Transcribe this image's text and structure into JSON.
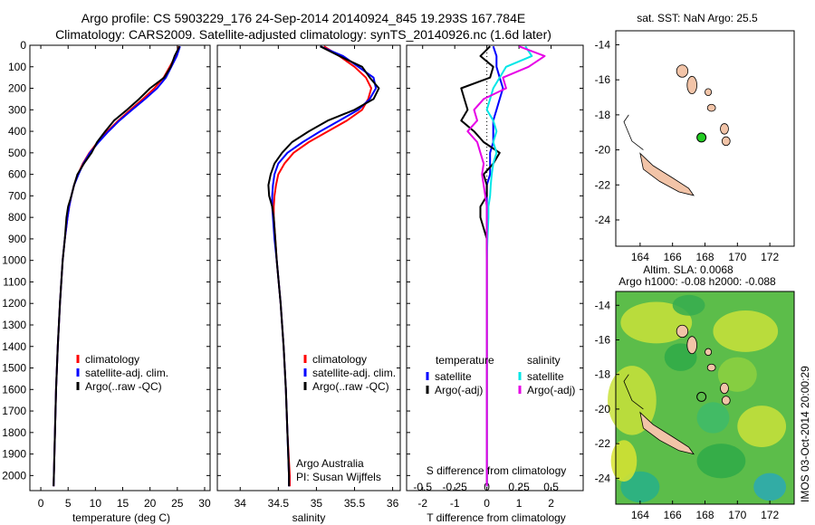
{
  "title": {
    "line1": "Argo profile: CS 5903229_176 24-Sep-2014 20140924_845 19.293S 167.784E",
    "line2": "Climatology: CARS2009. Satellite-adjusted climatology: synTS_20140926.nc (1.6d later)"
  },
  "side_label": "IMOS 03-Oct-2014 20:00:29",
  "colors": {
    "climatology": "#ff0000",
    "satellite": "#0000ff",
    "argo": "#000000",
    "sal_satellite": "#00e6e6",
    "sal_argo": "#e600e6",
    "land": "#f2c4a8",
    "argo_marker": "#22cc22"
  },
  "chart_data": [
    {
      "type": "line",
      "panel": "temperature",
      "xlabel": "temperature (deg C)",
      "ylabel": "",
      "xlim": [
        -2,
        31
      ],
      "ylim": [
        2070,
        0
      ],
      "xticks": [
        0,
        5,
        10,
        15,
        20,
        25,
        30
      ],
      "yticks": [
        0,
        100,
        200,
        300,
        400,
        500,
        600,
        700,
        800,
        900,
        1000,
        1100,
        1200,
        1300,
        1400,
        1500,
        1600,
        1700,
        1800,
        1900,
        2000
      ],
      "depth": [
        5,
        50,
        100,
        150,
        200,
        250,
        300,
        350,
        400,
        450,
        500,
        550,
        600,
        650,
        700,
        750,
        800,
        900,
        1000,
        1200,
        1400,
        1600,
        1800,
        2000,
        2050
      ],
      "series": [
        {
          "name": "climatology",
          "color": "#ff0000",
          "values": [
            25.3,
            24.7,
            23.6,
            22.5,
            20.8,
            18.7,
            16.4,
            14.2,
            12.2,
            10.4,
            8.9,
            7.7,
            6.8,
            6.1,
            5.6,
            5.2,
            4.9,
            4.4,
            4.0,
            3.5,
            3.1,
            2.8,
            2.6,
            2.4,
            2.35
          ]
        },
        {
          "name": "satellite-adj. clim.",
          "color": "#0000ff",
          "values": [
            25.5,
            24.9,
            23.9,
            22.9,
            21.3,
            19.1,
            16.7,
            14.4,
            12.4,
            10.6,
            9.0,
            7.8,
            6.9,
            6.1,
            5.6,
            5.2,
            4.9,
            4.4,
            4.0,
            3.5,
            3.1,
            2.8,
            2.6,
            2.4,
            2.35
          ]
        },
        {
          "name": "Argo(..raw -QC)",
          "color": "#000000",
          "values": [
            25.4,
            24.5,
            23.8,
            22.6,
            20.0,
            18.0,
            15.8,
            13.4,
            11.8,
            10.3,
            9.3,
            7.9,
            6.7,
            6.1,
            5.6,
            5.0,
            4.7,
            4.4,
            4.0,
            3.5,
            3.1,
            2.8,
            2.6,
            2.4,
            2.35
          ]
        }
      ],
      "legend": [
        "climatology",
        "satellite-adj. clim.",
        "Argo(..raw -QC)"
      ]
    },
    {
      "type": "line",
      "panel": "salinity",
      "xlabel": "salinity",
      "xlim": [
        33.7,
        36.1
      ],
      "xticks": [
        34,
        34.5,
        35,
        35.5,
        36
      ],
      "depth": [
        5,
        50,
        100,
        150,
        200,
        250,
        300,
        350,
        400,
        450,
        500,
        550,
        600,
        650,
        700,
        750,
        800,
        900,
        1000,
        1200,
        1400,
        1600,
        1800,
        2000,
        2050
      ],
      "series": [
        {
          "name": "climatology",
          "color": "#ff0000",
          "values": [
            35.1,
            35.3,
            35.5,
            35.65,
            35.72,
            35.68,
            35.6,
            35.4,
            35.15,
            34.9,
            34.7,
            34.58,
            34.5,
            34.47,
            34.45,
            34.44,
            34.44,
            34.46,
            34.48,
            34.53,
            34.57,
            34.6,
            34.62,
            34.65,
            34.65
          ]
        },
        {
          "name": "satellite-adj. clim.",
          "color": "#0000ff",
          "values": [
            35.05,
            35.35,
            35.55,
            35.75,
            35.78,
            35.7,
            35.55,
            35.3,
            35.05,
            34.82,
            34.62,
            34.5,
            34.45,
            34.43,
            34.42,
            34.42,
            34.43,
            34.45,
            34.48,
            34.53,
            34.57,
            34.6,
            34.62,
            34.64,
            34.64
          ]
        },
        {
          "name": "Argo(..raw -QC)",
          "color": "#000000",
          "values": [
            35.05,
            35.3,
            35.6,
            35.7,
            35.82,
            35.75,
            35.5,
            35.15,
            34.9,
            34.68,
            34.55,
            34.45,
            34.4,
            34.37,
            34.38,
            34.42,
            34.44,
            34.46,
            34.48,
            34.53,
            34.57,
            34.6,
            34.62,
            34.64,
            34.64
          ]
        }
      ],
      "legend": [
        "climatology",
        "satellite-adj. clim.",
        "Argo(..raw -QC)"
      ],
      "annotation_line1": "Argo Australia",
      "annotation_line2": "PI: Susan Wijffels"
    },
    {
      "type": "line",
      "panel": "difference",
      "xlabel": "T difference from climatology",
      "xlabel_top": "S difference from climatology",
      "xlim": [
        -2.5,
        3.0
      ],
      "xticks": [
        -2,
        -1,
        0,
        1,
        2
      ],
      "sticks": [
        "-0.5",
        "-0.25",
        "0",
        "0.25",
        "0.5"
      ],
      "depth": [
        5,
        50,
        100,
        150,
        200,
        250,
        300,
        350,
        400,
        450,
        500,
        550,
        600,
        650,
        700,
        750,
        800,
        900,
        1000,
        1200,
        1400,
        1600,
        1800,
        2000,
        2050
      ],
      "series": [
        {
          "name": "temperature satellite",
          "color": "#0000ff",
          "values": [
            0.2,
            0.3,
            0.3,
            0.4,
            0.5,
            0.4,
            0.3,
            0.2,
            0.2,
            0.2,
            0.1,
            0.1,
            0.1,
            0.0,
            0.0,
            0.0,
            0.0,
            0.0,
            0.0,
            0.0,
            0.0,
            0.0,
            0.0,
            0.0,
            0.0
          ]
        },
        {
          "name": "temperature Argo(-adj)",
          "color": "#000000",
          "values": [
            0.1,
            -0.2,
            0.2,
            0.1,
            -0.8,
            -0.7,
            -0.6,
            -0.8,
            -0.4,
            -0.1,
            0.4,
            0.2,
            -0.1,
            0.0,
            0.0,
            -0.2,
            -0.2,
            0.0,
            0.0,
            0.0,
            0.0,
            0.0,
            0.0,
            0.0,
            0.0
          ]
        },
        {
          "name": "salinity satellite",
          "color": "#00e6e6",
          "values": [
            1.2,
            1.4,
            0.6,
            0.4,
            0.2,
            0.1,
            0.0,
            0.2,
            0.3,
            0.2,
            0.3,
            0.2,
            0.15,
            0.12,
            0.1,
            0.05,
            0.05,
            0.02,
            0.0,
            0.0,
            0.0,
            0.0,
            0.0,
            0.0,
            0.0
          ]
        },
        {
          "name": "salinity Argo(-adj)",
          "color": "#e600e6",
          "values": [
            1.0,
            1.8,
            1.3,
            0.5,
            0.6,
            -0.1,
            -0.4,
            -0.3,
            -0.6,
            -0.3,
            -0.2,
            -0.1,
            -0.15,
            -0.1,
            -0.05,
            0.0,
            0.0,
            0.0,
            0.0,
            0.0,
            0.0,
            0.0,
            0.0,
            0.0,
            0.0
          ]
        }
      ],
      "legend_temperature_title": "temperature",
      "legend_temperature": [
        "satellite",
        "Argo(-adj)"
      ],
      "legend_salinity_title": "salinity",
      "legend_salinity": [
        "satellite",
        "Argo(-adj)"
      ]
    },
    {
      "type": "map",
      "panel": "sst",
      "title": "sat. SST: NaN Argo: 25.5",
      "xlim": [
        162.5,
        173.5
      ],
      "ylim": [
        -25.5,
        -13.2
      ],
      "xticks": [
        164,
        166,
        168,
        170,
        172
      ],
      "yticks": [
        -14,
        -16,
        -18,
        -20,
        -22,
        -24
      ],
      "argo_position": [
        167.784,
        -19.293
      ]
    },
    {
      "type": "heatmap",
      "panel": "sla",
      "title_line1": "Altim. SLA: 0.0068",
      "title_line2": "Argo h1000: -0.08 h2000: -0.088",
      "xlim": [
        162.5,
        173.5
      ],
      "ylim": [
        -25.5,
        -13.2
      ],
      "xticks": [
        164,
        166,
        168,
        170,
        172
      ],
      "yticks": [
        -14,
        -16,
        -18,
        -20,
        -22,
        -24
      ],
      "argo_position": [
        167.784,
        -19.293
      ]
    }
  ]
}
